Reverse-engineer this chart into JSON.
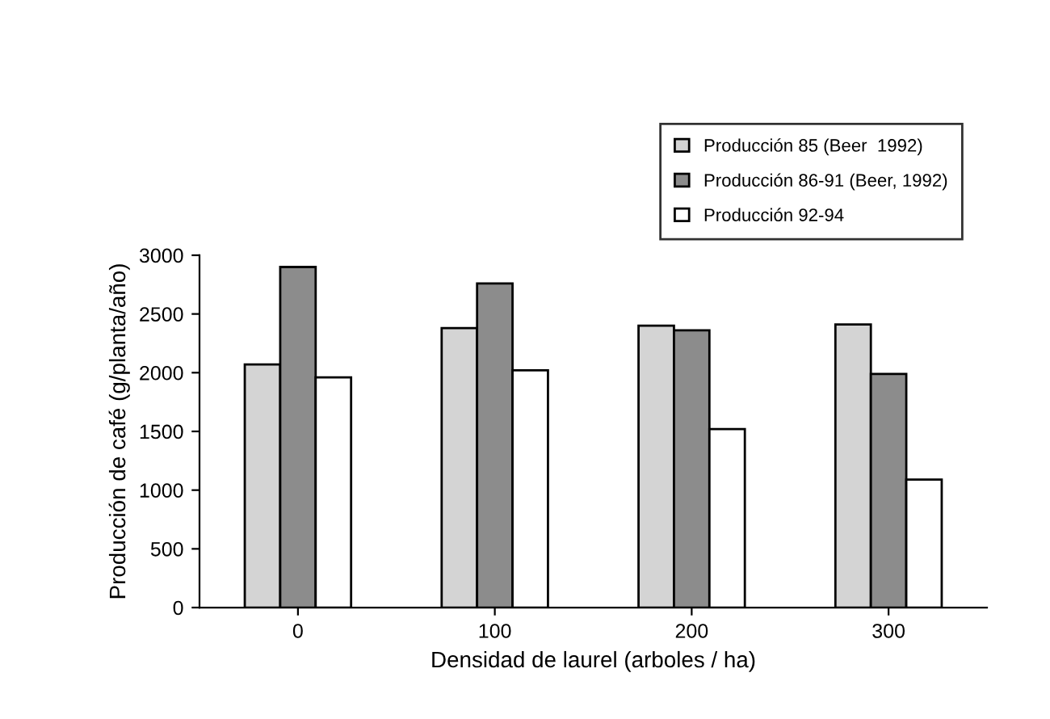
{
  "chart_data": {
    "type": "bar",
    "xlabel": "Densidad de laurel (arboles / ha)",
    "ylabel": "Producción de café (g/planta/año)",
    "categories": [
      "0",
      "100",
      "200",
      "300"
    ],
    "series": [
      {
        "name": "Producción 85 (Beer  1992)",
        "color": "#d4d4d4",
        "values": [
          2070,
          2380,
          2400,
          2410
        ]
      },
      {
        "name": "Producción 86-91 (Beer, 1992)",
        "color": "#8c8c8c",
        "values": [
          2900,
          2760,
          2360,
          1990
        ]
      },
      {
        "name": "Producción 92-94",
        "color": "#ffffff",
        "values": [
          1960,
          2020,
          1520,
          1090
        ]
      }
    ],
    "ylim": [
      0,
      3000
    ],
    "yticks": [
      0,
      500,
      1000,
      1500,
      2000,
      2500,
      3000
    ],
    "grid": false,
    "legend": "top right"
  }
}
